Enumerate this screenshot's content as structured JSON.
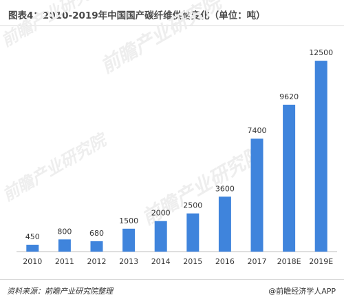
{
  "colors": {
    "bar": "#3f84dc",
    "axis": "#bfbfbf",
    "text": "#333333"
  },
  "chart_data": {
    "type": "bar",
    "title": "图表4：2010-2019年中国国产碳纤维供给变化（单位：吨）",
    "categories": [
      "2010",
      "2011",
      "2012",
      "2013",
      "2014",
      "2015",
      "2016",
      "2017",
      "2018E",
      "2019E"
    ],
    "values": [
      450,
      800,
      680,
      1500,
      2000,
      2500,
      3600,
      7400,
      9620,
      12500
    ],
    "ylim": [
      0,
      13500
    ],
    "grid": false,
    "legend": "none"
  },
  "footer": {
    "source": "资料来源：前瞻产业研究院整理",
    "brand": "@前瞻经济学人APP"
  },
  "watermark": {
    "text": "前瞻产业研究院"
  }
}
